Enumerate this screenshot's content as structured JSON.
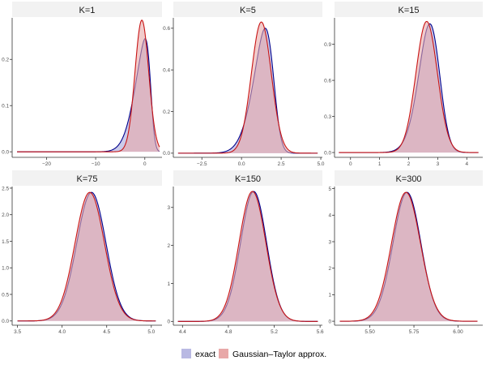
{
  "colors": {
    "exact_fill": "#b9b9e3",
    "exact_line": "#00008b",
    "approx_fill": "#e8a8a8",
    "approx_line": "#c81414",
    "strip_bg": "#f2f2f2",
    "axis": "#333333",
    "tick_text": "#4d4d4d"
  },
  "legend": {
    "exact_label": "exact",
    "approx_label": "Gaussian–Taylor approx."
  },
  "chart_data": [
    {
      "type": "area",
      "title": "K=1",
      "xlim": [
        -27,
        3.5
      ],
      "ylim": [
        -0.012,
        0.29
      ],
      "xticks": [
        -20,
        -10,
        0
      ],
      "xtick_labels": [
        "−20",
        "−10",
        "0"
      ],
      "yticks": [
        0.0,
        0.1,
        0.2
      ],
      "ytick_labels": [
        "0.0",
        "0.1",
        "0.2"
      ],
      "x_range": [
        -26,
        3
      ],
      "series": [
        {
          "name": "exact",
          "dist": "skewnormal",
          "loc": 1.2,
          "scale": 2.7,
          "alpha": -4,
          "peak": 0.245
        },
        {
          "name": "Gaussian–Taylor approx.",
          "dist": "normal",
          "mean": -0.6,
          "sd": 1.4,
          "peak": 0.285
        }
      ]
    },
    {
      "type": "area",
      "title": "K=5",
      "xlim": [
        -4.3,
        5.1
      ],
      "ylim": [
        -0.02,
        0.65
      ],
      "xticks": [
        -2.5,
        0.0,
        2.5,
        5.0
      ],
      "xtick_labels": [
        "−2.5",
        "0.0",
        "2.5",
        "5.0"
      ],
      "yticks": [
        0.0,
        0.2,
        0.4,
        0.6
      ],
      "ytick_labels": [
        "0.0",
        "0.2",
        "0.4",
        "0.6"
      ],
      "x_range": [
        -4,
        4.8
      ],
      "series": [
        {
          "name": "exact",
          "dist": "skewnormal",
          "loc": 2.0,
          "scale": 1.0,
          "alpha": -2.5,
          "peak": 0.6
        },
        {
          "name": "Gaussian–Taylor approx.",
          "dist": "normal",
          "mean": 1.25,
          "sd": 0.63,
          "peak": 0.63
        }
      ]
    },
    {
      "type": "area",
      "title": "K=15",
      "xlim": [
        -0.55,
        4.55
      ],
      "ylim": [
        -0.04,
        1.12
      ],
      "xticks": [
        0,
        1,
        2,
        3,
        4
      ],
      "xtick_labels": [
        "0",
        "1",
        "2",
        "3",
        "4"
      ],
      "yticks": [
        0.0,
        0.3,
        0.6,
        0.9
      ],
      "ytick_labels": [
        "0.0",
        "0.3",
        "0.6",
        "0.9"
      ],
      "x_range": [
        -0.4,
        4.4
      ],
      "series": [
        {
          "name": "exact",
          "dist": "skewnormal",
          "loc": 3.0,
          "scale": 0.5,
          "alpha": -1.5,
          "peak": 1.07
        },
        {
          "name": "Gaussian–Taylor approx.",
          "dist": "normal",
          "mean": 2.62,
          "sd": 0.37,
          "peak": 1.09
        }
      ]
    },
    {
      "type": "area",
      "title": "K=75",
      "xlim": [
        3.44,
        5.12
      ],
      "ylim": [
        -0.08,
        2.53
      ],
      "xticks": [
        3.5,
        4.0,
        4.5,
        5.0
      ],
      "xtick_labels": [
        "3.5",
        "4.0",
        "4.5",
        "5.0"
      ],
      "yticks": [
        0.0,
        0.5,
        1.0,
        1.5,
        2.0,
        2.5
      ],
      "ytick_labels": [
        "0.0",
        "0.5",
        "1.0",
        "1.5",
        "2.0",
        "2.5"
      ],
      "x_range": [
        3.5,
        5.05
      ],
      "series": [
        {
          "name": "exact",
          "dist": "skewnormal",
          "loc": 4.4,
          "scale": 0.18,
          "alpha": -0.6,
          "peak": 2.42
        },
        {
          "name": "Gaussian–Taylor approx.",
          "dist": "normal",
          "mean": 4.31,
          "sd": 0.165,
          "peak": 2.42
        }
      ]
    },
    {
      "type": "area",
      "title": "K=150",
      "xlim": [
        4.32,
        5.62
      ],
      "ylim": [
        -0.1,
        3.55
      ],
      "xticks": [
        4.4,
        4.8,
        5.2,
        5.6
      ],
      "xtick_labels": [
        "4.4",
        "4.8",
        "5.2",
        "5.6"
      ],
      "yticks": [
        0,
        1,
        2,
        3
      ],
      "ytick_labels": [
        "0",
        "1",
        "2",
        "3"
      ],
      "x_range": [
        4.36,
        5.58
      ],
      "series": [
        {
          "name": "exact",
          "dist": "skewnormal",
          "loc": 5.07,
          "scale": 0.125,
          "alpha": -0.6,
          "peak": 3.42
        },
        {
          "name": "Gaussian–Taylor approx.",
          "dist": "normal",
          "mean": 5.01,
          "sd": 0.117,
          "peak": 3.42
        }
      ]
    },
    {
      "type": "area",
      "title": "K=300",
      "xlim": [
        5.3,
        6.14
      ],
      "ylim": [
        -0.15,
        5.08
      ],
      "xticks": [
        5.5,
        5.75,
        6.0
      ],
      "xtick_labels": [
        "5.50",
        "5.75",
        "6.00"
      ],
      "yticks": [
        0,
        1,
        2,
        3,
        4,
        5
      ],
      "ytick_labels": [
        "0",
        "1",
        "2",
        "3",
        "4",
        "5"
      ],
      "x_range": [
        5.33,
        6.11
      ],
      "series": [
        {
          "name": "exact",
          "dist": "skewnormal",
          "loc": 5.745,
          "scale": 0.087,
          "alpha": -0.6,
          "peak": 4.86
        },
        {
          "name": "Gaussian–Taylor approx.",
          "dist": "normal",
          "mean": 5.705,
          "sd": 0.082,
          "peak": 4.86
        }
      ]
    }
  ]
}
